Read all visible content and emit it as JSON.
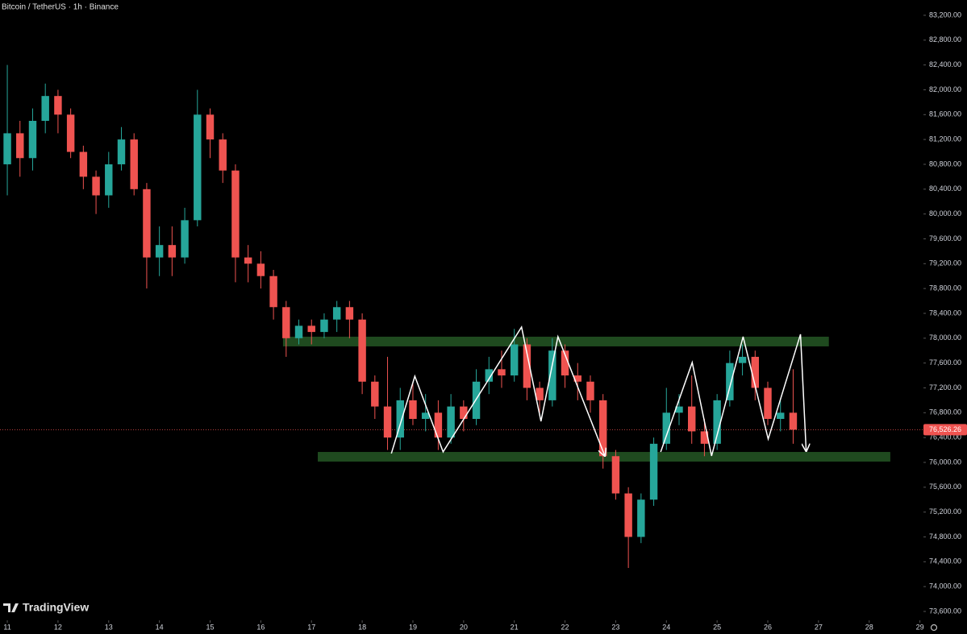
{
  "chart_data": {
    "type": "candlestick",
    "title": "Bitcoin / TetherUS · 1h · Binance",
    "watermark": "TradingView",
    "up_color": "#26a69a",
    "down_color": "#ef5350",
    "xlim": [
      10.856,
      29.07
    ],
    "ylim": [
      73457,
      83446
    ],
    "xticks": [
      11,
      12,
      13,
      14,
      15,
      16,
      17,
      18,
      19,
      20,
      21,
      22,
      23,
      24,
      25,
      26,
      27,
      28,
      29
    ],
    "yticks": [
      {
        "value": 73600,
        "label": "73,600.00"
      },
      {
        "value": 74000,
        "label": "74,000.00"
      },
      {
        "value": 74400,
        "label": "74,400.00"
      },
      {
        "value": 74800,
        "label": "74,800.00"
      },
      {
        "value": 75200,
        "label": "75,200.00"
      },
      {
        "value": 75600,
        "label": "75,600.00"
      },
      {
        "value": 76000,
        "label": "76,000.00"
      },
      {
        "value": 76400,
        "label": "76,400.00"
      },
      {
        "value": 76800,
        "label": "76,800.00"
      },
      {
        "value": 77200,
        "label": "77,200.00"
      },
      {
        "value": 77600,
        "label": "77,600.00"
      },
      {
        "value": 78000,
        "label": "78,000.00"
      },
      {
        "value": 78400,
        "label": "78,400.00"
      },
      {
        "value": 78800,
        "label": "78,800.00"
      },
      {
        "value": 79200,
        "label": "79,200.00"
      },
      {
        "value": 79600,
        "label": "79,600.00"
      },
      {
        "value": 80000,
        "label": "80,000.00"
      },
      {
        "value": 80400,
        "label": "80,400.00"
      },
      {
        "value": 80800,
        "label": "80,800.00"
      },
      {
        "value": 81200,
        "label": "81,200.00"
      },
      {
        "value": 81600,
        "label": "81,600.00"
      },
      {
        "value": 82000,
        "label": "82,000.00"
      },
      {
        "value": 82400,
        "label": "82,400.00"
      },
      {
        "value": 82800,
        "label": "82,800.00"
      },
      {
        "value": 83200,
        "label": "83,200.00"
      }
    ],
    "x": [
      11.0,
      11.25,
      11.5,
      11.75,
      12.0,
      12.25,
      12.5,
      12.75,
      13.0,
      13.25,
      13.5,
      13.75,
      14.0,
      14.25,
      14.5,
      14.75,
      15.0,
      15.25,
      15.5,
      15.75,
      16.0,
      16.25,
      16.5,
      16.75,
      17.0,
      17.25,
      17.5,
      17.75,
      18.0,
      18.25,
      18.5,
      18.75,
      19.0,
      19.25,
      19.5,
      19.75,
      20.0,
      20.25,
      20.5,
      20.75,
      21.0,
      21.25,
      21.5,
      21.75,
      22.0,
      22.25,
      22.5,
      22.75,
      23.0,
      23.25,
      23.5,
      23.75,
      24.0,
      24.25,
      24.5,
      24.75,
      25.0,
      25.25,
      25.5,
      25.75,
      26.0,
      26.25,
      26.5
    ],
    "open": [
      80800,
      81300,
      80900,
      81500,
      81900,
      81600,
      81000,
      80600,
      80300,
      80800,
      81200,
      80400,
      79300,
      79500,
      79300,
      79900,
      81600,
      81200,
      80700,
      79300,
      79200,
      79000,
      78500,
      78000,
      78200,
      78100,
      78300,
      78500,
      78300,
      77300,
      76900,
      76400,
      77000,
      76700,
      76800,
      76400,
      76900,
      76700,
      77300,
      77500,
      77400,
      77900,
      77200,
      77000,
      77800,
      77400,
      77300,
      77000,
      76100,
      75500,
      74800,
      75400,
      76300,
      76800,
      76900,
      76500,
      76300,
      77000,
      77600,
      77700,
      77200,
      76700,
      76800
    ],
    "high": [
      82400,
      81500,
      81700,
      82100,
      82000,
      81700,
      81100,
      80700,
      81000,
      81400,
      81300,
      80500,
      79800,
      79800,
      80100,
      82000,
      81700,
      81300,
      80800,
      79500,
      79400,
      79100,
      78600,
      78300,
      78300,
      78400,
      78600,
      78600,
      78400,
      77400,
      77700,
      77200,
      77300,
      77100,
      77000,
      77100,
      77000,
      77500,
      77700,
      77800,
      78150,
      78000,
      77300,
      78000,
      77900,
      77600,
      77400,
      77100,
      76200,
      75600,
      75500,
      76400,
      77200,
      77100,
      77400,
      76700,
      77100,
      77800,
      77900,
      77800,
      77300,
      77000,
      77500
    ],
    "low": [
      80300,
      80600,
      80700,
      81300,
      81300,
      80900,
      80400,
      80000,
      80100,
      80700,
      80300,
      78800,
      79000,
      79000,
      79200,
      79800,
      80900,
      80500,
      78900,
      78900,
      78800,
      78300,
      77700,
      77900,
      77900,
      78000,
      78100,
      78000,
      77100,
      76700,
      76200,
      76200,
      76600,
      76500,
      76200,
      76300,
      76500,
      76600,
      77100,
      77200,
      77300,
      77000,
      76800,
      76900,
      77200,
      77000,
      76800,
      75900,
      75400,
      74300,
      74700,
      75300,
      76200,
      76600,
      76300,
      76100,
      76200,
      76900,
      77400,
      77000,
      76600,
      76500,
      76300
    ],
    "close": [
      81300,
      80900,
      81500,
      81900,
      81600,
      81000,
      80600,
      80300,
      80800,
      81200,
      80400,
      79300,
      79500,
      79300,
      79900,
      81600,
      81200,
      80700,
      79300,
      79200,
      79000,
      78500,
      78000,
      78200,
      78100,
      78300,
      78500,
      78300,
      77300,
      76900,
      76400,
      77000,
      76700,
      76800,
      76400,
      76900,
      76700,
      77300,
      77500,
      77400,
      77900,
      77200,
      77000,
      77800,
      77400,
      77300,
      77000,
      76100,
      75500,
      74800,
      75400,
      76300,
      76800,
      76900,
      76500,
      76300,
      77000,
      77600,
      77700,
      77200,
      76700,
      76800,
      76526.26
    ],
    "last_price": {
      "value": 76526.26,
      "label": "76,526.26"
    },
    "zone_color": "#1f4a1f",
    "zones": [
      {
        "x": [
          16.438,
          27.204
        ],
        "y": [
          77868,
          78024
        ]
      },
      {
        "x": [
          17.124,
          28.416
        ],
        "y": [
          76013,
          76168
        ]
      }
    ],
    "drawing_color": "#ffffff",
    "drawings": [
      {
        "x": [
          18.575,
          19.038,
          19.596,
          21.143,
          21.526,
          21.861,
          22.786
        ],
        "y": [
          76143,
          77388,
          76169,
          78180,
          76662,
          78024,
          76104
        ]
      },
      {
        "x": [
          23.887,
          24.509,
          24.891,
          25.513,
          26.008,
          26.645,
          26.757
        ],
        "y": [
          76169,
          77609,
          76104,
          78024,
          76376,
          78063,
          76182
        ]
      }
    ]
  }
}
